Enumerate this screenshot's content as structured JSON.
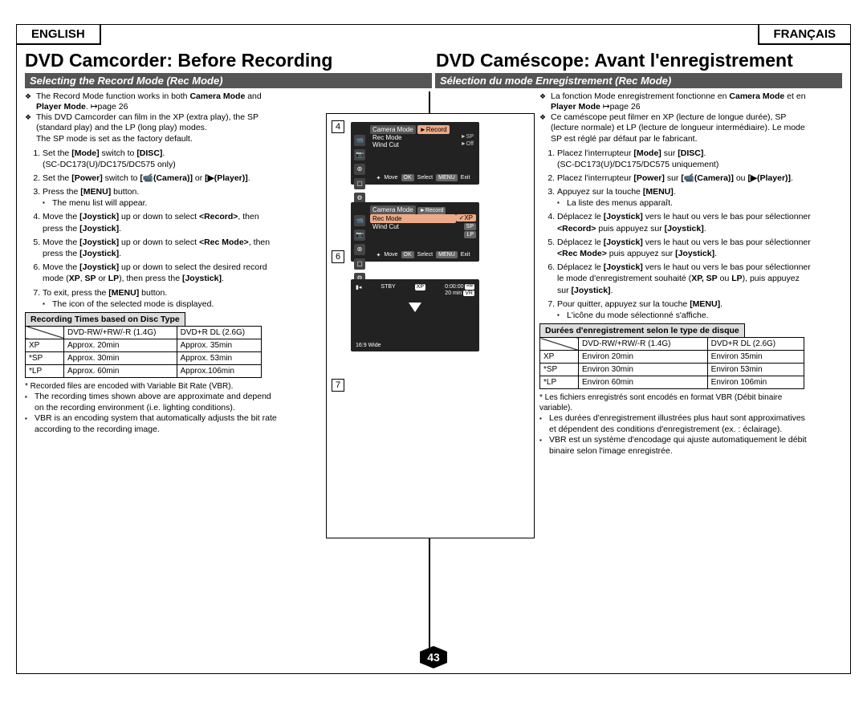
{
  "lang": {
    "left": "ENGLISH",
    "right": "FRANÇAIS"
  },
  "titles": {
    "left": "DVD Camcorder: Before Recording",
    "right": "DVD Caméscope: Avant l'enregistrement"
  },
  "subheads": {
    "left": "Selecting the Record Mode (Rec Mode)",
    "right": "Sélection du mode Enregistrement (Rec Mode)"
  },
  "en": {
    "bul1": "The Record Mode function works in both <b>Camera Mode</b> and <b>Player Mode</b>. ↦page 26",
    "bul2": "This DVD Camcorder can film in the XP (extra play), the SP (standard play) and the LP (long play) modes.<br>The SP mode is set as the factory default.",
    "steps": [
      "Set the <b>[Mode]</b> switch to <b>[DISC]</b>.<br>(SC-DC173(U)/DC175/DC575 only)",
      "Set the <b>[Power]</b> switch to <b>[📹(Camera)]</b> or <b>[▶(Player)]</b>.",
      "Press the <b>[MENU]</b> button.",
      "Move the <b>[Joystick]</b> up or down to select <b>&lt;Record&gt;</b>, then press the <b>[Joystick]</b>.",
      "Move the <b>[Joystick]</b> up or down to select <b>&lt;Rec Mode&gt;</b>, then press the <b>[Joystick]</b>.",
      "Move the <b>[Joystick]</b> up or down to select the desired record mode (<b>XP</b>, <b>SP</b> or <b>LP</b>), then press the <b>[Joystick]</b>.",
      "To exit, press the <b>[MENU]</b> button."
    ],
    "sub3": "The menu list will appear.",
    "sub7": "The icon of the selected mode is displayed.",
    "tblTitle": "Recording Times based on Disc Type",
    "table": {
      "h1": "DVD-RW/+RW/-R (1.4G)",
      "h2": "DVD+R DL (2.6G)",
      "rows": [
        [
          "XP",
          "Approx. 20min",
          "Approx. 35min"
        ],
        [
          "*SP",
          "Approx. 30min",
          "Approx. 53min"
        ],
        [
          "*LP",
          "Approx. 60min",
          "Approx.106min"
        ]
      ]
    },
    "note0": "* Recorded files are encoded with Variable Bit Rate (VBR).",
    "notes": [
      "The recording times shown above are approximate and depend on the recording environment (i.e. lighting conditions).",
      "VBR is an encoding system that automatically adjusts the bit rate according to the recording image."
    ]
  },
  "fr": {
    "bul1": "La fonction Mode enregistrement fonctionne en <b>Camera Mode</b> et en <b>Player Mode</b> ↦page 26",
    "bul2": "Ce caméscope peut filmer en XP (lecture de longue durée), SP (lecture normale) et LP (lecture de longueur intermédiaire). Le mode SP est réglé par défaut par le fabricant.",
    "steps": [
      "Placez l'interrupteur <b>[Mode]</b> sur <b>[DISC]</b>.<br>(SC-DC173(U)/DC175/DC575 uniquement)",
      "Placez l'interrupteur <b>[Power]</b> sur <b>[📹(Camera)]</b> ou <b>[▶(Player)]</b>.",
      "Appuyez sur la touche <b>[MENU]</b>.",
      "Déplacez le <b>[Joystick]</b> vers le haut ou vers le bas pour sélectionner <b>&lt;Record&gt;</b> puis appuyez sur <b>[Joystick]</b>.",
      "Déplacez le <b>[Joystick]</b> vers le haut ou vers le bas pour sélectionner <b>&lt;Rec Mode&gt;</b> puis appuyez sur <b>[Joystick]</b>.",
      "Déplacez le <b>[Joystick]</b> vers le haut ou vers le bas pour sélectionner le mode d'enregistrement souhaité (<b>XP, SP</b> ou <b>LP</b>), puis appuyez sur <b>[Joystick]</b>.",
      "Pour quitter, appuyez sur la touche <b>[MENU]</b>."
    ],
    "sub3": "La liste des menus apparaît.",
    "sub7": "L'icône du mode sélectionné s'affiche.",
    "tblTitle": "Durées d'enregistrement selon le type de disque",
    "table": {
      "h1": "DVD-RW/+RW/-R (1.4G)",
      "h2": "DVD+R DL (2.6G)",
      "rows": [
        [
          "XP",
          "Environ 20min",
          "Environ 35min"
        ],
        [
          "*SP",
          "Environ 30min",
          "Environ 53min"
        ],
        [
          "*LP",
          "Environ 60min",
          "Environ 106min"
        ]
      ]
    },
    "note0": "* Les fichiers enregistrés sont encodés en format VBR (Débit binaire variable).",
    "notes": [
      "Les durées d'enregistrement illustrées plus haut sont approximatives et dépendent des conditions d'enregistrement (ex. : éclairage).",
      "VBR est un système d'encodage qui ajuste automatiquement le débit binaire selon l'image enregistrée."
    ]
  },
  "figs": {
    "nums": {
      "a": "4",
      "b": "6",
      "c": "7"
    },
    "screen4": {
      "title": "Camera Mode",
      "hl": "►Record",
      "items": [
        {
          "l": "Rec Mode",
          "r": "►SP"
        },
        {
          "l": "Wind Cut",
          "r": "►Off"
        }
      ]
    },
    "screen6": {
      "title": "Camera Mode",
      "hl": "►Record",
      "row1": "Rec Mode",
      "opts": [
        "✓XP",
        "SP",
        "LP"
      ],
      "wind": "Wind Cut"
    },
    "bottombar": {
      "move": "Move",
      "ok": "OK",
      "select": "Select",
      "menu": "MENU",
      "exit": "Exit",
      "arrows": "✦"
    },
    "stby": {
      "batt": "▮◂",
      "label": "STBY",
      "xp": "XP",
      "time": "0:00:00",
      "rw": "ᴿᵂ",
      "min": "20 min",
      "vr": "VR",
      "wide": "16:9 Wide"
    }
  },
  "pageNum": "43"
}
